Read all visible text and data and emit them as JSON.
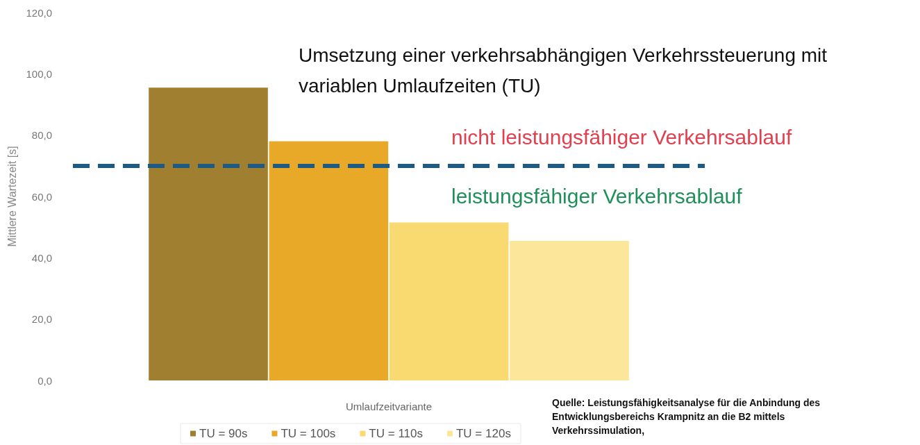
{
  "chart_data": {
    "type": "bar",
    "title": "Umsetzung einer verkehrsabhängigen Verkehrssteuerung mit variablen Umlaufzeiten (TU)",
    "xlabel": "Umlaufzeitvariante",
    "ylabel": "Mittlere Wartezeit [s]",
    "categories": [
      null
    ],
    "series": [
      {
        "name": "TU = 90s",
        "color": "#a07f30",
        "values": [
          95.5
        ]
      },
      {
        "name": "TU = 100s",
        "color": "#e8a828",
        "values": [
          78
        ]
      },
      {
        "name": "TU = 110s",
        "color": "#f8da70",
        "values": [
          51.5
        ]
      },
      {
        "name": "TU = 120s",
        "color": "#fbe69a",
        "values": [
          45.5
        ]
      }
    ],
    "ylim": [
      0,
      120
    ],
    "yticks": [
      {
        "value": 0,
        "label": "0,0"
      },
      {
        "value": 20,
        "label": "20,0"
      },
      {
        "value": 40,
        "label": "40,0"
      },
      {
        "value": 60,
        "label": "60,0"
      },
      {
        "value": 80,
        "label": "80,0"
      },
      {
        "value": 100,
        "label": "100,0"
      },
      {
        "value": 120,
        "label": "120,0"
      }
    ],
    "ref_lines": [
      {
        "axis": "y",
        "value": 70,
        "color": "#1f5a82",
        "line_style": "dashed"
      }
    ],
    "annotations": [
      "nicht leistungsfähiger Verkehrsablauf",
      "leistungsfähiger Verkehrsablauf",
      "Quelle: Leistungsfähigkeitsanalyse für die Anbindung des Entwicklungsbereichs Krampnitz an die B2 mittels Verkehrssimulation,"
    ],
    "grid": false,
    "legend": "bottom"
  }
}
